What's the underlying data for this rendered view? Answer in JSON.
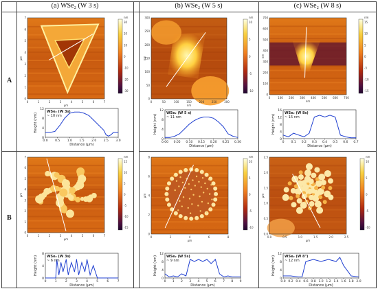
{
  "columns": [
    {
      "title": "(a) WSe₂ (W 3 s)"
    },
    {
      "title": "(b) WSe₂ (W 5 s)"
    },
    {
      "title": "(c) WSe₂ (W 8 s)"
    }
  ],
  "rows": [
    {
      "label": "A"
    },
    {
      "label": "B"
    }
  ],
  "panels": [
    {
      "id": "a-A",
      "axis_unit": "µm",
      "image_ticks": [
        "0",
        "1",
        "2",
        "3",
        "4",
        "5",
        "6",
        "7"
      ],
      "color_unit": "nm",
      "color_ticks": [
        "30",
        "20",
        "10",
        "0",
        "-10",
        "-20",
        "-30"
      ],
      "profile": {
        "label_line1": "WSe₂ (W 3s)",
        "label_line2": "~ 10 nm",
        "ylabel": "Height (nm)",
        "xlabel": "Distance (µm)",
        "xticks": [
          "0.0",
          "0.5",
          "1.0",
          "1.5",
          "2.0",
          "2.5",
          "3.0"
        ],
        "yticks": [
          "12",
          "8",
          "4",
          "0"
        ]
      }
    },
    {
      "id": "b-A",
      "axis_unit": "nm",
      "image_ticks": [
        "0",
        "50",
        "100",
        "150",
        "200",
        "250",
        "300"
      ],
      "color_unit": "nm",
      "color_ticks": [
        "10",
        "5",
        "0",
        "-5",
        "-10"
      ],
      "profile": {
        "label_line1": "WSe₂ (W 5 s)",
        "label_line2": "~ 11 nm",
        "ylabel": "Height (nm)",
        "xlabel": "Distance (µm)",
        "xticks": [
          "0.00",
          "0.05",
          "0.10",
          "0.15",
          "0.20",
          "0.25",
          "0.30"
        ],
        "yticks": [
          "12",
          "8",
          "4",
          "0"
        ]
      }
    },
    {
      "id": "c-A",
      "axis_unit": "nm",
      "image_ticks": [
        "0",
        "100",
        "200",
        "300",
        "400",
        "500",
        "600",
        "700"
      ],
      "color_unit": "nm",
      "color_ticks": [
        "15",
        "10",
        "5",
        "0",
        "-5",
        "-10",
        "-15"
      ],
      "profile": {
        "label_line1": "WSe₂ (W 8s)",
        "label_line2": "~ 15 nm",
        "ylabel": "Height (nm)",
        "xlabel": "Distance (µm)",
        "xticks": [
          "0",
          "0.1",
          "0.2",
          "0.3",
          "0.4",
          "0.5",
          "0.6",
          "0.7"
        ],
        "yticks": [
          "16",
          "12",
          "8",
          "4",
          "0"
        ]
      }
    },
    {
      "id": "a-B",
      "axis_unit": "µm",
      "image_ticks": [
        "0",
        "1",
        "2",
        "3",
        "4",
        "5",
        "6",
        "7"
      ],
      "color_unit": "nm",
      "color_ticks": [
        "15",
        "10",
        "5",
        "0",
        "-5",
        "-10",
        "-15"
      ],
      "profile": {
        "label_line1": "WSe₂ (W 3s)",
        "label_line2": "~ 6 nm",
        "ylabel": "Height (nm)",
        "xlabel": "Distance (µm)",
        "xticks": [
          "0",
          "1",
          "2",
          "3",
          "4",
          "5",
          "6",
          "7"
        ],
        "yticks": [
          "8",
          "4",
          "0"
        ]
      }
    },
    {
      "id": "b-B",
      "axis_unit": "µm",
      "image_ticks": [
        "0",
        "2",
        "4",
        "6",
        "8"
      ],
      "color_unit": "nm",
      "color_ticks": [
        "10",
        "5",
        "0",
        "-5",
        "-10"
      ],
      "profile": {
        "label_line1": "WSe₂ (W 5s)",
        "label_line2": "~ 9 nm",
        "ylabel": "Height (nm)",
        "xlabel": "Distance (µm)",
        "xticks": [
          "0",
          "1",
          "2",
          "3",
          "4",
          "5",
          "6",
          "7",
          "8",
          "9"
        ],
        "yticks": [
          "12",
          "8",
          "4",
          "0"
        ]
      }
    },
    {
      "id": "c-B",
      "axis_unit": "µm",
      "image_ticks": [
        "0.0",
        "0.5",
        "1.0",
        "1.5",
        "2.0",
        "2.5"
      ],
      "color_unit": "nm",
      "color_ticks": [
        "10",
        "5",
        "0",
        "-5",
        "-10"
      ],
      "profile": {
        "label_line1": "WSe₂ (W 8\")",
        "label_line2": "~ 12 nm",
        "ylabel": "Height (nm)",
        "xlabel": "Distance (µm)",
        "xticks": [
          "0.0",
          "0.2",
          "0.4",
          "0.6",
          "0.8",
          "1.0",
          "1.2",
          "1.4",
          "1.6",
          "1.8",
          "2.0"
        ],
        "yticks": [
          "12",
          "8",
          "4",
          "0"
        ]
      }
    }
  ],
  "chart_data": [
    {
      "type": "line",
      "panel": "a-A",
      "xlabel": "Distance (µm)",
      "ylabel": "Height (nm)",
      "xlim": [
        0,
        3
      ],
      "ylim": [
        0,
        12
      ],
      "x": [
        0,
        0.2,
        0.4,
        0.6,
        0.8,
        1.0,
        1.2,
        1.4,
        1.6,
        1.8,
        2.0,
        2.2,
        2.4,
        2.5,
        2.6,
        2.7,
        2.8,
        3.0
      ],
      "y": [
        2,
        2,
        2.5,
        5,
        8,
        10,
        10.5,
        10.5,
        10,
        9,
        7,
        5,
        3,
        1,
        0.5,
        1,
        2,
        2
      ]
    },
    {
      "type": "line",
      "panel": "b-A",
      "xlabel": "Distance (µm)",
      "ylabel": "Height (nm)",
      "xlim": [
        0,
        0.3
      ],
      "ylim": [
        0,
        12
      ],
      "x": [
        0,
        0.02,
        0.04,
        0.06,
        0.08,
        0.1,
        0.12,
        0.14,
        0.16,
        0.18,
        0.2,
        0.22,
        0.24,
        0.26,
        0.28,
        0.3
      ],
      "y": [
        0.5,
        0.5,
        1,
        2,
        4,
        6,
        7.5,
        8.5,
        9,
        9,
        8.5,
        7,
        5,
        2,
        1,
        0.5
      ]
    },
    {
      "type": "line",
      "panel": "c-A",
      "xlabel": "Distance (µm)",
      "ylabel": "Height (nm)",
      "xlim": [
        0,
        0.7
      ],
      "ylim": [
        0,
        16
      ],
      "x": [
        0,
        0.05,
        0.1,
        0.15,
        0.2,
        0.25,
        0.3,
        0.35,
        0.4,
        0.45,
        0.5,
        0.55,
        0.6,
        0.65,
        0.7
      ],
      "y": [
        2,
        1,
        3,
        2,
        1,
        3,
        12,
        13,
        12,
        13,
        12,
        2,
        1,
        0.5,
        0.5
      ]
    },
    {
      "type": "line",
      "panel": "a-B",
      "xlabel": "Distance (µm)",
      "ylabel": "Height (nm)",
      "xlim": [
        0,
        7
      ],
      "ylim": [
        0,
        8
      ],
      "x": [
        0,
        0.5,
        1.0,
        1.1,
        1.3,
        1.5,
        1.7,
        2.0,
        2.2,
        2.5,
        2.8,
        3.0,
        3.2,
        3.5,
        3.8,
        4.0,
        4.3,
        4.6,
        5.0,
        5.5,
        6.0,
        7.0
      ],
      "y": [
        0,
        0,
        0,
        6,
        1,
        5,
        2,
        6,
        1,
        5,
        2,
        6,
        1,
        5,
        2,
        6,
        1,
        4,
        0,
        0,
        0,
        0
      ]
    },
    {
      "type": "line",
      "panel": "b-B",
      "xlabel": "Distance (µm)",
      "ylabel": "Height (nm)",
      "xlim": [
        0,
        9
      ],
      "ylim": [
        0,
        12
      ],
      "x": [
        0,
        0.5,
        1.0,
        1.5,
        2.0,
        2.5,
        3.0,
        3.5,
        4.0,
        4.5,
        5.0,
        5.5,
        6.0,
        6.5,
        7.0,
        7.5,
        8.0,
        8.5,
        9.0
      ],
      "y": [
        2,
        0.5,
        1,
        0.5,
        2,
        1,
        9,
        8,
        9,
        8,
        9,
        7,
        9,
        2,
        0.5,
        1,
        0.5,
        0.5,
        0.5
      ]
    },
    {
      "type": "line",
      "panel": "c-B",
      "xlabel": "Distance (µm)",
      "ylabel": "Height (nm)",
      "xlim": [
        0,
        2
      ],
      "ylim": [
        0,
        12
      ],
      "x": [
        0,
        0.2,
        0.4,
        0.5,
        0.6,
        0.8,
        1.0,
        1.2,
        1.4,
        1.5,
        1.6,
        1.8,
        2.0
      ],
      "y": [
        1,
        1,
        0.5,
        0.5,
        8,
        9,
        8,
        9,
        8,
        10,
        6,
        1,
        0.5
      ]
    }
  ]
}
